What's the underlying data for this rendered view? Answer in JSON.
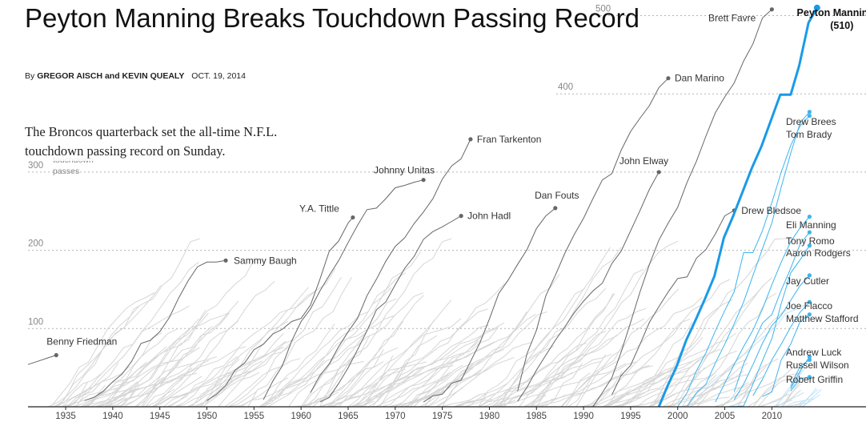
{
  "header": {
    "headline": "Peyton Manning Breaks Touchdown Passing Record",
    "byline_prefix": "By",
    "byline_authors": "GREGOR AISCH and KEVIN QUEALY",
    "date": "OCT. 19, 2014",
    "dek": "The Broncos quarterback set the all-time N.F.L. touchdown passing record on Sunday."
  },
  "chart_data": {
    "type": "line",
    "title": "Peyton Manning Breaks Touchdown Passing Record",
    "ylabel": "touchdown passes",
    "y_axis_caption": [
      "touchdown",
      "passes"
    ],
    "xlim": [
      1931,
      2020
    ],
    "ylim": [
      0,
      520
    ],
    "x_ticks": [
      1935,
      1940,
      1945,
      1950,
      1955,
      1960,
      1965,
      1970,
      1975,
      1980,
      1985,
      1990,
      1995,
      2000,
      2005,
      2010
    ],
    "y_ticks": [
      100,
      200,
      300,
      400,
      500
    ],
    "grid": "dotted horizontal",
    "colors": {
      "manning": "#1a9ae8",
      "active": "#3db4ee",
      "highlight": "#666666",
      "background_lines": "#d6d6d6"
    },
    "highlight": {
      "name": "Peyton Manning",
      "value_label": "(510)",
      "final": 510,
      "points": [
        [
          1998,
          0
        ],
        [
          1998.9,
          26
        ],
        [
          1999.9,
          52
        ],
        [
          2000.9,
          85
        ],
        [
          2001.9,
          111
        ],
        [
          2002.9,
          138
        ],
        [
          2003.9,
          167
        ],
        [
          2004.9,
          216
        ],
        [
          2005.9,
          244
        ],
        [
          2006.9,
          275
        ],
        [
          2007.9,
          306
        ],
        [
          2008.9,
          333
        ],
        [
          2009.9,
          366
        ],
        [
          2010.9,
          399
        ],
        [
          2012,
          399
        ],
        [
          2012.9,
          436
        ],
        [
          2013.9,
          491
        ],
        [
          2014.8,
          510
        ]
      ]
    },
    "retired": [
      {
        "name": "Benny Friedman",
        "points": [
          [
            1931,
            54
          ],
          [
            1932,
            58
          ],
          [
            1933,
            62
          ],
          [
            1934,
            66
          ]
        ]
      },
      {
        "name": "Sammy Baugh",
        "points": [
          [
            1937,
            8
          ],
          [
            1938,
            12
          ],
          [
            1939,
            20
          ],
          [
            1940,
            32
          ],
          [
            1941,
            42
          ],
          [
            1942,
            58
          ],
          [
            1943,
            81
          ],
          [
            1944,
            85
          ],
          [
            1945,
            96
          ],
          [
            1946,
            114
          ],
          [
            1947,
            139
          ],
          [
            1948,
            161
          ],
          [
            1949,
            179
          ],
          [
            1950,
            185
          ],
          [
            1951,
            185
          ],
          [
            1952,
            187
          ]
        ]
      },
      {
        "name": "Y.A. Tittle",
        "points": [
          [
            1950,
            8
          ],
          [
            1951,
            16
          ],
          [
            1952,
            27
          ],
          [
            1953,
            47
          ],
          [
            1954,
            56
          ],
          [
            1955,
            73
          ],
          [
            1956,
            80
          ],
          [
            1957,
            93
          ],
          [
            1958,
            99
          ],
          [
            1959,
            109
          ],
          [
            1960,
            113
          ],
          [
            1961,
            130
          ],
          [
            1962,
            163
          ],
          [
            1963,
            199
          ],
          [
            1964,
            212
          ],
          [
            1965,
            235
          ],
          [
            1965.5,
            242
          ]
        ]
      },
      {
        "name": "Johnny Unitas",
        "points": [
          [
            1956,
            9
          ],
          [
            1957,
            33
          ],
          [
            1958,
            52
          ],
          [
            1959,
            84
          ],
          [
            1960,
            109
          ],
          [
            1961,
            125
          ],
          [
            1962,
            148
          ],
          [
            1963,
            168
          ],
          [
            1964,
            187
          ],
          [
            1965,
            210
          ],
          [
            1966,
            232
          ],
          [
            1967,
            252
          ],
          [
            1968,
            254
          ],
          [
            1969,
            266
          ],
          [
            1970,
            280
          ],
          [
            1971,
            283
          ],
          [
            1972,
            287
          ],
          [
            1973,
            290
          ]
        ]
      },
      {
        "name": "Fran Tarkenton",
        "points": [
          [
            1961,
            18
          ],
          [
            1962,
            40
          ],
          [
            1963,
            55
          ],
          [
            1964,
            77
          ],
          [
            1965,
            96
          ],
          [
            1966,
            113
          ],
          [
            1967,
            142
          ],
          [
            1968,
            163
          ],
          [
            1969,
            186
          ],
          [
            1970,
            205
          ],
          [
            1971,
            216
          ],
          [
            1972,
            234
          ],
          [
            1973,
            249
          ],
          [
            1974,
            266
          ],
          [
            1975,
            291
          ],
          [
            1976,
            308
          ],
          [
            1977,
            317
          ],
          [
            1978,
            342
          ]
        ]
      },
      {
        "name": "John Hadl",
        "points": [
          [
            1962,
            6
          ],
          [
            1963,
            12
          ],
          [
            1964,
            30
          ],
          [
            1965,
            50
          ],
          [
            1966,
            73
          ],
          [
            1967,
            97
          ],
          [
            1968,
            124
          ],
          [
            1969,
            134
          ],
          [
            1970,
            156
          ],
          [
            1971,
            177
          ],
          [
            1972,
            192
          ],
          [
            1973,
            214
          ],
          [
            1974,
            224
          ],
          [
            1975,
            230
          ],
          [
            1976,
            237
          ],
          [
            1977,
            244
          ]
        ]
      },
      {
        "name": "Dan Fouts",
        "points": [
          [
            1973,
            6
          ],
          [
            1974,
            14
          ],
          [
            1975,
            16
          ],
          [
            1976,
            30
          ],
          [
            1977,
            34
          ],
          [
            1978,
            58
          ],
          [
            1979,
            82
          ],
          [
            1980,
            112
          ],
          [
            1981,
            145
          ],
          [
            1982,
            162
          ],
          [
            1983,
            182
          ],
          [
            1984,
            201
          ],
          [
            1985,
            228
          ],
          [
            1986,
            244
          ],
          [
            1987,
            254
          ]
        ]
      },
      {
        "name": "Dan Marino",
        "points": [
          [
            1983,
            20
          ],
          [
            1984,
            68
          ],
          [
            1985,
            98
          ],
          [
            1986,
            142
          ],
          [
            1987,
            168
          ],
          [
            1988,
            196
          ],
          [
            1989,
            220
          ],
          [
            1990,
            241
          ],
          [
            1991,
            266
          ],
          [
            1992,
            290
          ],
          [
            1993,
            298
          ],
          [
            1994,
            328
          ],
          [
            1995,
            352
          ],
          [
            1996,
            369
          ],
          [
            1997,
            385
          ],
          [
            1998,
            408
          ],
          [
            1999,
            420
          ]
        ]
      },
      {
        "name": "John Elway",
        "points": [
          [
            1983,
            7
          ],
          [
            1984,
            25
          ],
          [
            1985,
            47
          ],
          [
            1986,
            66
          ],
          [
            1987,
            85
          ],
          [
            1988,
            102
          ],
          [
            1989,
            120
          ],
          [
            1990,
            135
          ],
          [
            1991,
            148
          ],
          [
            1992,
            158
          ],
          [
            1993,
            183
          ],
          [
            1994,
            199
          ],
          [
            1995,
            225
          ],
          [
            1996,
            251
          ],
          [
            1997,
            278
          ],
          [
            1998,
            300
          ]
        ]
      },
      {
        "name": "Drew Bledsoe",
        "points": [
          [
            1993,
            15
          ],
          [
            1994,
            40
          ],
          [
            1995,
            53
          ],
          [
            1996,
            80
          ],
          [
            1997,
            108
          ],
          [
            1998,
            128
          ],
          [
            1999,
            147
          ],
          [
            2000,
            164
          ],
          [
            2001,
            166
          ],
          [
            2002,
            190
          ],
          [
            2003,
            201
          ],
          [
            2004,
            221
          ],
          [
            2005,
            244
          ],
          [
            2006,
            251
          ]
        ]
      },
      {
        "name": "Brett Favre",
        "points": [
          [
            1991,
            0
          ],
          [
            1992,
            18
          ],
          [
            1993,
            37
          ],
          [
            1994,
            70
          ],
          [
            1995,
            108
          ],
          [
            1996,
            147
          ],
          [
            1997,
            182
          ],
          [
            1998,
            213
          ],
          [
            1999,
            235
          ],
          [
            2000,
            255
          ],
          [
            2001,
            287
          ],
          [
            2002,
            314
          ],
          [
            2003,
            346
          ],
          [
            2004,
            376
          ],
          [
            2005,
            396
          ],
          [
            2006,
            414
          ],
          [
            2007,
            442
          ],
          [
            2008,
            464
          ],
          [
            2009,
            497
          ],
          [
            2010,
            508
          ]
        ]
      }
    ],
    "active": [
      {
        "name": "Drew Brees",
        "points": [
          [
            2001,
            1
          ],
          [
            2002,
            18
          ],
          [
            2003,
            29
          ],
          [
            2004,
            56
          ],
          [
            2005,
            80
          ],
          [
            2006,
            106
          ],
          [
            2007,
            134
          ],
          [
            2008,
            168
          ],
          [
            2009,
            202
          ],
          [
            2010,
            235
          ],
          [
            2011,
            281
          ],
          [
            2012,
            324
          ],
          [
            2013,
            363
          ],
          [
            2014,
            377
          ]
        ]
      },
      {
        "name": "Tom Brady",
        "points": [
          [
            2000,
            0
          ],
          [
            2001,
            18
          ],
          [
            2002,
            46
          ],
          [
            2003,
            69
          ],
          [
            2004,
            97
          ],
          [
            2005,
            123
          ],
          [
            2006,
            147
          ],
          [
            2007,
            197
          ],
          [
            2008,
            197
          ],
          [
            2009,
            225
          ],
          [
            2010,
            261
          ],
          [
            2011,
            300
          ],
          [
            2012,
            334
          ],
          [
            2013,
            359
          ],
          [
            2014,
            372
          ]
        ]
      },
      {
        "name": "Eli Manning",
        "points": [
          [
            2004,
            6
          ],
          [
            2005,
            30
          ],
          [
            2006,
            54
          ],
          [
            2007,
            77
          ],
          [
            2008,
            98
          ],
          [
            2009,
            125
          ],
          [
            2010,
            156
          ],
          [
            2011,
            185
          ],
          [
            2012,
            211
          ],
          [
            2013,
            229
          ],
          [
            2014,
            243
          ]
        ]
      },
      {
        "name": "Tony Romo",
        "points": [
          [
            2006,
            19
          ],
          [
            2007,
            55
          ],
          [
            2008,
            81
          ],
          [
            2009,
            107
          ],
          [
            2010,
            118
          ],
          [
            2011,
            149
          ],
          [
            2012,
            177
          ],
          [
            2013,
            208
          ],
          [
            2014,
            223
          ]
        ]
      },
      {
        "name": "Aaron Rodgers",
        "points": [
          [
            2005,
            0
          ],
          [
            2007,
            1
          ],
          [
            2008,
            29
          ],
          [
            2009,
            59
          ],
          [
            2010,
            87
          ],
          [
            2011,
            132
          ],
          [
            2012,
            171
          ],
          [
            2013,
            188
          ],
          [
            2014,
            206
          ]
        ]
      },
      {
        "name": "Jay Cutler",
        "points": [
          [
            2006,
            9
          ],
          [
            2007,
            29
          ],
          [
            2008,
            54
          ],
          [
            2009,
            81
          ],
          [
            2010,
            104
          ],
          [
            2011,
            117
          ],
          [
            2012,
            136
          ],
          [
            2013,
            155
          ],
          [
            2014,
            168
          ]
        ]
      },
      {
        "name": "Joe Flacco",
        "points": [
          [
            2008,
            14
          ],
          [
            2009,
            35
          ],
          [
            2010,
            60
          ],
          [
            2011,
            80
          ],
          [
            2012,
            102
          ],
          [
            2013,
            121
          ],
          [
            2014,
            134
          ]
        ]
      },
      {
        "name": "Matthew Stafford",
        "points": [
          [
            2009,
            13
          ],
          [
            2010,
            19
          ],
          [
            2011,
            60
          ],
          [
            2012,
            80
          ],
          [
            2013,
            109
          ],
          [
            2014,
            118
          ]
        ]
      },
      {
        "name": "Andrew Luck",
        "points": [
          [
            2012,
            23
          ],
          [
            2013,
            46
          ],
          [
            2014,
            64
          ]
        ]
      },
      {
        "name": "Russell Wilson",
        "points": [
          [
            2012,
            26
          ],
          [
            2013,
            52
          ],
          [
            2014,
            60
          ]
        ]
      },
      {
        "name": "Robert Griffin",
        "points": [
          [
            2012,
            20
          ],
          [
            2013,
            36
          ],
          [
            2014,
            38
          ]
        ]
      }
    ]
  }
}
